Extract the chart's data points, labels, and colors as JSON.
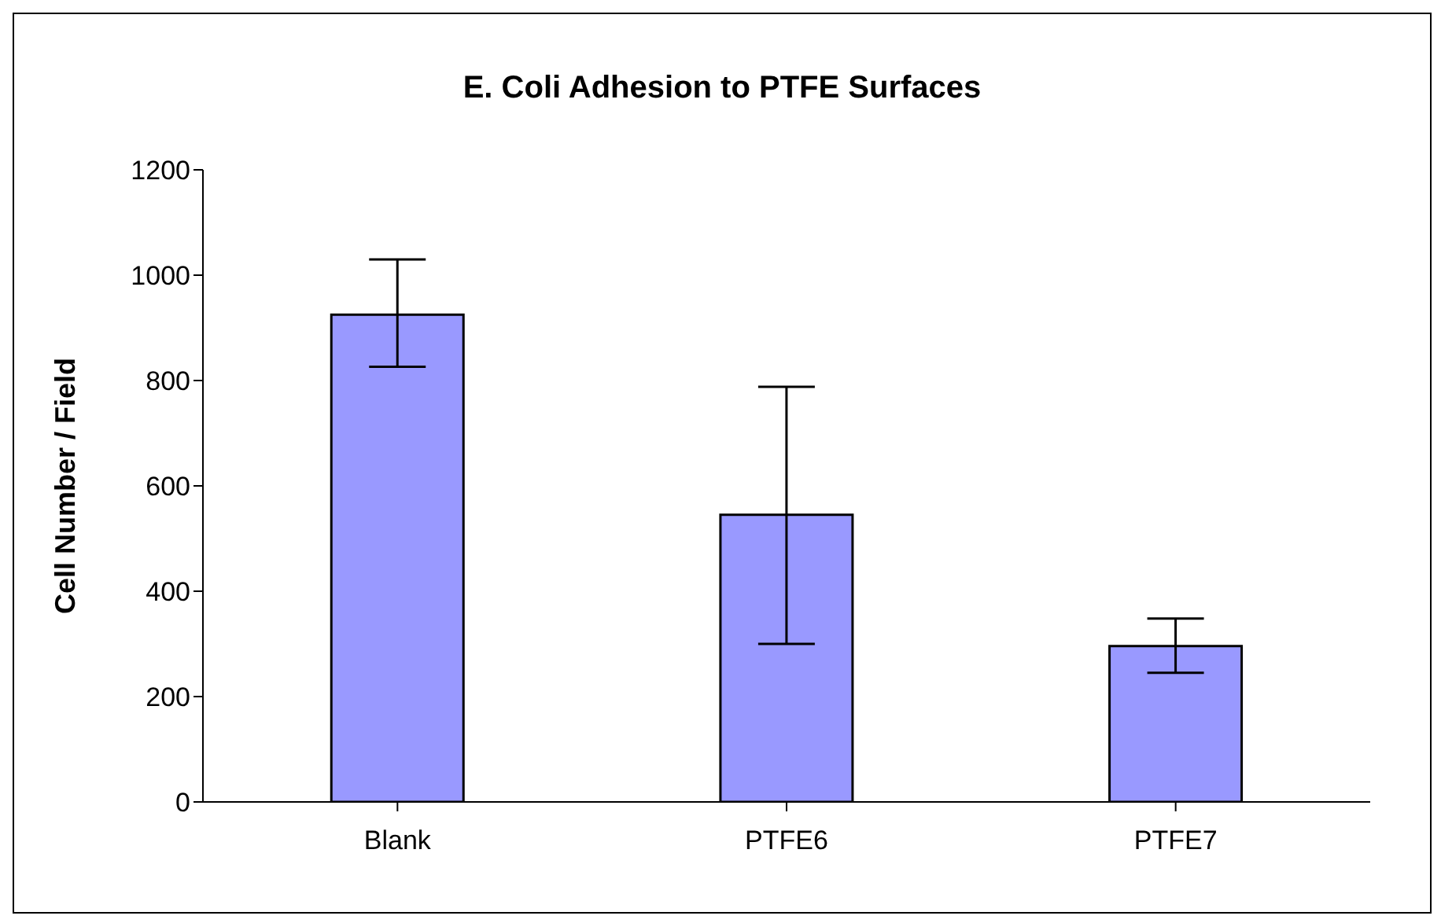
{
  "chart_data": {
    "type": "bar",
    "title": "E. Coli Adhesion to PTFE Surfaces",
    "ylabel": "Cell Number / Field",
    "categories": [
      "Blank",
      "PTFE6",
      "PTFE7"
    ],
    "values": [
      925,
      545,
      296
    ],
    "errors": [
      [
        826,
        1030
      ],
      [
        300,
        788
      ],
      [
        245,
        348
      ]
    ],
    "color": "#9999ff",
    "ylim": [
      0,
      1200
    ],
    "yticks": [
      0,
      200,
      400,
      600,
      800,
      1000,
      1200
    ],
    "grid": false,
    "legend": false
  }
}
